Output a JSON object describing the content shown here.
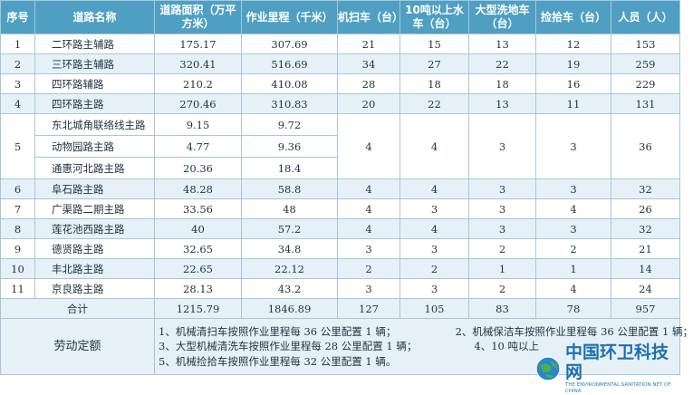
{
  "header": {
    "seq": "序号",
    "road_name": "道路名称",
    "area": "道路面积（万平方米）",
    "mileage": "作业里程（千米）",
    "sweeper": "机扫车（台）",
    "water_truck": "10吨以上水车（台）",
    "washer": "大型洗地车（台）",
    "picker": "捡拾车（台）",
    "staff": "人员（人）"
  },
  "rows": [
    {
      "seq": "1",
      "name": "二环路主辅路",
      "area": "175.17",
      "mileage": "307.69",
      "sweeper": "21",
      "water": "15",
      "washer": "13",
      "picker": "12",
      "staff": "153"
    },
    {
      "seq": "2",
      "name": "三环路主辅路",
      "area": "320.41",
      "mileage": "516.69",
      "sweeper": "34",
      "water": "27",
      "washer": "22",
      "picker": "19",
      "staff": "259"
    },
    {
      "seq": "3",
      "name": "四环路辅路",
      "area": "210.2",
      "mileage": "410.08",
      "sweeper": "28",
      "water": "18",
      "washer": "18",
      "picker": "16",
      "staff": "229"
    },
    {
      "seq": "4",
      "name": "四环路主路",
      "area": "270.46",
      "mileage": "310.83",
      "sweeper": "20",
      "water": "22",
      "washer": "13",
      "picker": "11",
      "staff": "131"
    }
  ],
  "group5": {
    "seq": "5",
    "sub": [
      {
        "name": "东北城角联络线主路",
        "area": "9.15",
        "mileage": "9.72"
      },
      {
        "name": "动物园路主路",
        "area": "4.77",
        "mileage": "9.36"
      },
      {
        "name": "通惠河北路主路",
        "area": "20.36",
        "mileage": "18.4"
      }
    ],
    "sweeper": "4",
    "water": "4",
    "washer": "3",
    "picker": "3",
    "staff": "36"
  },
  "rows2": [
    {
      "seq": "6",
      "name": "阜石路主路",
      "area": "48.28",
      "mileage": "58.8",
      "sweeper": "4",
      "water": "4",
      "washer": "3",
      "picker": "3",
      "staff": "32"
    },
    {
      "seq": "7",
      "name": "广渠路二期主路",
      "area": "33.56",
      "mileage": "48",
      "sweeper": "4",
      "water": "3",
      "washer": "3",
      "picker": "4",
      "staff": "26"
    },
    {
      "seq": "8",
      "name": "莲花池西路主路",
      "area": "40",
      "mileage": "57.2",
      "sweeper": "4",
      "water": "4",
      "washer": "3",
      "picker": "3",
      "staff": "32"
    },
    {
      "seq": "9",
      "name": "德贤路主路",
      "area": "32.65",
      "mileage": "34.8",
      "sweeper": "3",
      "water": "3",
      "washer": "2",
      "picker": "2",
      "staff": "21"
    },
    {
      "seq": "10",
      "name": "丰北路主路",
      "area": "22.65",
      "mileage": "22.12",
      "sweeper": "2",
      "water": "2",
      "washer": "1",
      "picker": "1",
      "staff": "14"
    },
    {
      "seq": "11",
      "name": "京良路主路",
      "area": "28.13",
      "mileage": "43.2",
      "sweeper": "3",
      "water": "3",
      "washer": "2",
      "picker": "4",
      "staff": "24"
    }
  ],
  "total": {
    "label": "合计",
    "area": "1215.79",
    "mileage": "1846.89",
    "sweeper": "127",
    "water": "105",
    "washer": "83",
    "picker": "78",
    "staff": "957"
  },
  "quota": {
    "label": "劳动定额",
    "line1_left": "1、机械清扫车按照作业里程每 36 公里配置 1 辆；",
    "line1_right": "2、机械保洁车按照作业里程每 36 公里配置 1 辆；",
    "line2_left": "3、大型机械清洗车按照作业里程每 28 公里配置 1 辆；",
    "line2_right": "4、10 吨以上",
    "line3": "5、机械捡拾车按照作业里程每 32 公里配置 1 辆。"
  },
  "watermark": {
    "cn": "中国环卫科技网",
    "en": "THE ENVIRONMENTAL SANITATION NET OF CHINA",
    "accent": "#1e6fb3"
  },
  "colors": {
    "header_bg": "#4f9fc3",
    "row_alt": "#e6f1f7",
    "border": "#a9c6d6"
  }
}
